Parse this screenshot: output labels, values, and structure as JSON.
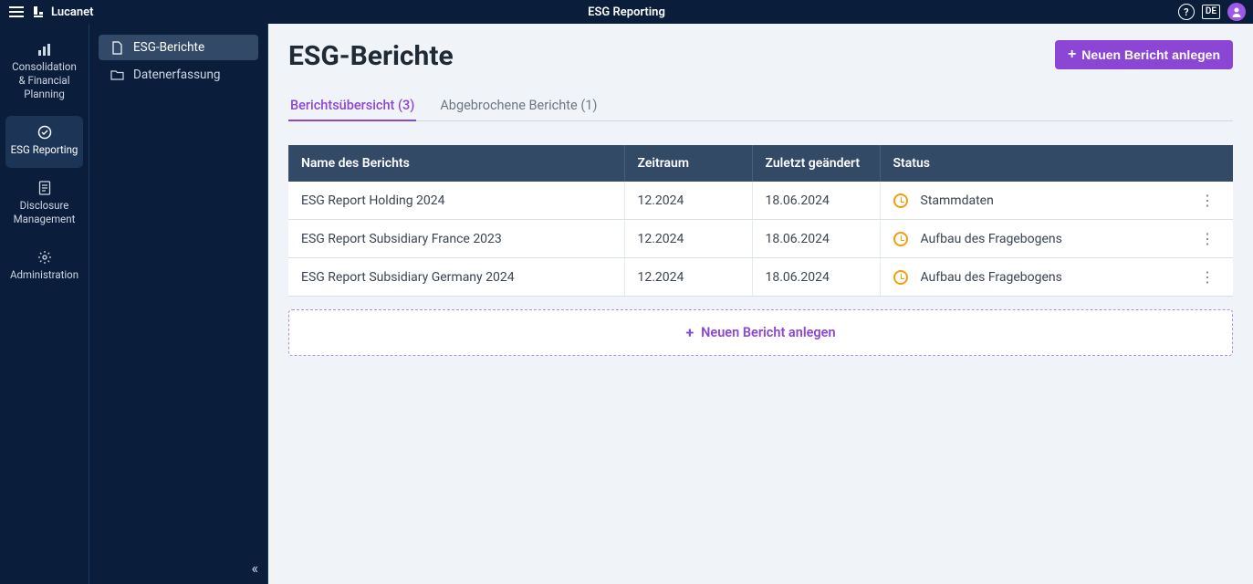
{
  "brand": "Lucanet",
  "app_title": "ESG Reporting",
  "language": "DE",
  "primary_nav": [
    {
      "id": "consolidation",
      "label": "Consolidation & Financial Planning",
      "icon": "chart",
      "active": false
    },
    {
      "id": "esg",
      "label": "ESG Reporting",
      "icon": "check",
      "active": true
    },
    {
      "id": "disclosure",
      "label": "Disclosure Management",
      "icon": "doc",
      "active": false
    },
    {
      "id": "admin",
      "label": "Administration",
      "icon": "gear",
      "active": false
    }
  ],
  "secondary_nav": [
    {
      "id": "reports",
      "label": "ESG-Berichte",
      "icon": "file",
      "active": true
    },
    {
      "id": "data",
      "label": "Datenerfassung",
      "icon": "folder",
      "active": false
    }
  ],
  "page": {
    "title": "ESG-Berichte",
    "new_button": "Neuen Bericht anlegen"
  },
  "tabs": [
    {
      "label": "Berichtsübersicht",
      "count": "(3)",
      "active": true
    },
    {
      "label": "Abgebrochene Berichte",
      "count": "(1)",
      "active": false
    }
  ],
  "table": {
    "columns": [
      "Name des Berichts",
      "Zeitraum",
      "Zuletzt geändert",
      "Status"
    ],
    "rows": [
      {
        "name": "ESG Report Holding 2024",
        "period": "12.2024",
        "modified": "18.06.2024",
        "status": "Stammdaten"
      },
      {
        "name": "ESG Report Subsidiary France 2023",
        "period": "12.2024",
        "modified": "18.06.2024",
        "status": "Aufbau des Fragebogens"
      },
      {
        "name": "ESG Report Subsidiary Germany 2024",
        "period": "12.2024",
        "modified": "18.06.2024",
        "status": "Aufbau des Fragebogens"
      }
    ]
  },
  "new_report_inline": "Neuen Bericht anlegen",
  "colors": {
    "topbar": "#0a1d3a",
    "accent": "#8b46d6",
    "table_header": "#334a66",
    "status_icon": "#f59e0b",
    "page_bg": "#f0f4f8"
  }
}
